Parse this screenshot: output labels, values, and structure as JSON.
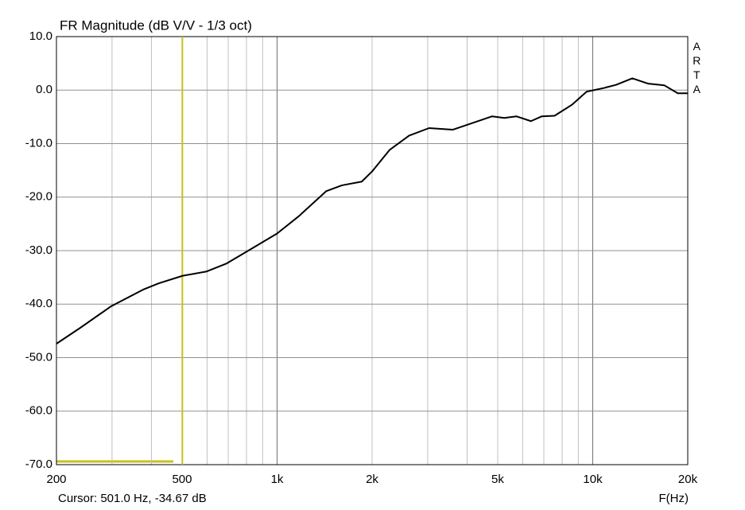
{
  "chart_data": {
    "type": "line",
    "title": "FR Magnitude (dB V/V - 1/3 oct)",
    "brand": "ARTA",
    "x_label": "F(Hz)",
    "log_x": true,
    "grid": true,
    "cursor": {
      "label": "Cursor: 501.0 Hz, -34.67 dB",
      "x": 501.0,
      "y": -34.67,
      "color": "#c8c020"
    },
    "xlim": [
      200,
      20000
    ],
    "xticks": [
      200,
      500,
      {
        "value": 1000,
        "label": "1k"
      },
      {
        "value": 2000,
        "label": "2k"
      },
      {
        "value": 5000,
        "label": "5k"
      },
      {
        "value": 10000,
        "label": "10k"
      },
      {
        "value": 20000,
        "label": "20k"
      }
    ],
    "x_minor_grid": [
      300,
      400,
      600,
      700,
      800,
      900,
      3000,
      4000,
      6000,
      7000,
      8000,
      9000
    ],
    "ylim": [
      -70,
      10
    ],
    "yticks": [
      {
        "value": 10,
        "label": "10.0"
      },
      {
        "value": 0,
        "label": "0.0"
      },
      {
        "value": -10,
        "label": "-10.0"
      },
      {
        "value": -20,
        "label": "-20.0"
      },
      {
        "value": -30,
        "label": "-30.0"
      },
      {
        "value": -40,
        "label": "-40.0"
      },
      {
        "value": -50,
        "label": "-50.0"
      },
      {
        "value": -60,
        "label": "-60.0"
      },
      {
        "value": -70,
        "label": "-70.0"
      }
    ],
    "series": [
      {
        "name": "FR Magnitude",
        "color": "#000000",
        "x": [
          200,
          237,
          298,
          376,
          422,
          502,
          598,
          692,
          800,
          1000,
          1170,
          1430,
          1605,
          1855,
          2000,
          2270,
          2620,
          3030,
          3600,
          4280,
          4800,
          5250,
          5730,
          6370,
          6900,
          7570,
          8610,
          9560,
          10860,
          11870,
          13350,
          15000,
          16850,
          18600,
          20000
        ],
        "values": [
          -47.4,
          -44.5,
          -40.4,
          -37.3,
          -36.1,
          -34.7,
          -33.9,
          -32.4,
          -30.2,
          -26.8,
          -23.6,
          -18.9,
          -17.8,
          -17.1,
          -15.2,
          -11.2,
          -8.5,
          -7.1,
          -7.4,
          -5.9,
          -4.9,
          -5.2,
          -4.9,
          -5.8,
          -4.9,
          -4.8,
          -2.7,
          -0.3,
          0.4,
          1.0,
          2.2,
          1.2,
          0.9,
          -0.6,
          -0.6
        ]
      }
    ]
  }
}
